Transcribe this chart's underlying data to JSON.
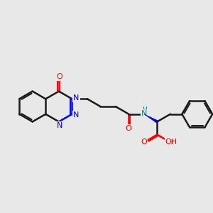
{
  "bg_color": "#e8e8e8",
  "bond_color": "#1a1a1a",
  "N_color": "#0000ff",
  "O_color": "#ff0000",
  "NH_color": "#008080",
  "stereo_color": "#0000cc",
  "figsize": [
    3.0,
    3.0
  ],
  "dpi": 100,
  "bl": 1.0,
  "xlim": [
    0,
    14
  ],
  "ylim": [
    0,
    14
  ]
}
